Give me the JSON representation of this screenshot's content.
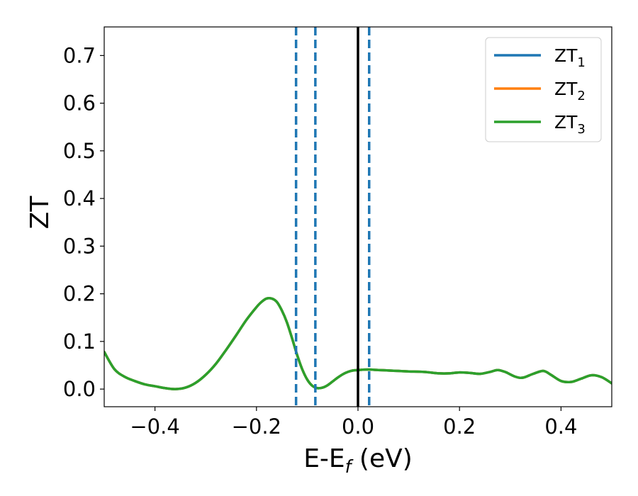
{
  "chart_data": {
    "type": "line",
    "xlabel": "E-E",
    "xlabel_sub": "f",
    "xlabel_unit": " (eV)",
    "ylabel": "ZT",
    "xlim": [
      -0.5,
      0.5
    ],
    "ylim": [
      -0.037,
      0.76
    ],
    "grid": false,
    "legend_position": "top-right",
    "x_ticks": [
      -0.4,
      -0.2,
      0.0,
      0.2,
      0.4
    ],
    "x_tick_labels": [
      "−0.4",
      "−0.2",
      "0.0",
      "0.2",
      "0.4"
    ],
    "y_ticks": [
      0.0,
      0.1,
      0.2,
      0.3,
      0.4,
      0.5,
      0.6,
      0.7
    ],
    "y_tick_labels": [
      "0.0",
      "0.1",
      "0.2",
      "0.3",
      "0.4",
      "0.5",
      "0.6",
      "0.7"
    ],
    "series": [
      {
        "name": "ZT",
        "sub": "1",
        "color": "#1f77b4"
      },
      {
        "name": "ZT",
        "sub": "2",
        "color": "#ff7f0e"
      },
      {
        "name": "ZT",
        "sub": "3",
        "color": "#2ca02c"
      }
    ],
    "curve": {
      "x": [
        -0.5,
        -0.48,
        -0.46,
        -0.44,
        -0.42,
        -0.4,
        -0.38,
        -0.36,
        -0.34,
        -0.32,
        -0.3,
        -0.28,
        -0.26,
        -0.24,
        -0.22,
        -0.2,
        -0.19,
        -0.18,
        -0.17,
        -0.16,
        -0.15,
        -0.14,
        -0.13,
        -0.12,
        -0.11,
        -0.1,
        -0.09,
        -0.08,
        -0.07,
        -0.06,
        -0.05,
        -0.04,
        -0.03,
        -0.02,
        -0.01,
        0.0,
        0.02,
        0.04,
        0.06,
        0.08,
        0.1,
        0.13,
        0.16,
        0.18,
        0.2,
        0.22,
        0.24,
        0.26,
        0.275,
        0.29,
        0.31,
        0.325,
        0.345,
        0.365,
        0.38,
        0.4,
        0.42,
        0.44,
        0.46,
        0.48,
        0.5
      ],
      "y": [
        0.078,
        0.042,
        0.026,
        0.017,
        0.01,
        0.006,
        0.002,
        0.0,
        0.003,
        0.013,
        0.03,
        0.053,
        0.082,
        0.113,
        0.145,
        0.172,
        0.183,
        0.19,
        0.19,
        0.183,
        0.165,
        0.14,
        0.107,
        0.072,
        0.042,
        0.02,
        0.007,
        0.002,
        0.003,
        0.008,
        0.016,
        0.024,
        0.031,
        0.036,
        0.039,
        0.04,
        0.041,
        0.04,
        0.039,
        0.038,
        0.037,
        0.036,
        0.033,
        0.033,
        0.035,
        0.034,
        0.032,
        0.036,
        0.04,
        0.036,
        0.026,
        0.024,
        0.032,
        0.038,
        0.03,
        0.017,
        0.015,
        0.022,
        0.029,
        0.025,
        0.012
      ]
    },
    "vlines": [
      {
        "x": -0.122,
        "style": "dashed",
        "color": "#1f77b4"
      },
      {
        "x": -0.084,
        "style": "dashed",
        "color": "#1f77b4"
      },
      {
        "x": 0.0,
        "style": "solid",
        "color": "#000000"
      },
      {
        "x": 0.022,
        "style": "dashed",
        "color": "#1f77b4"
      }
    ]
  }
}
